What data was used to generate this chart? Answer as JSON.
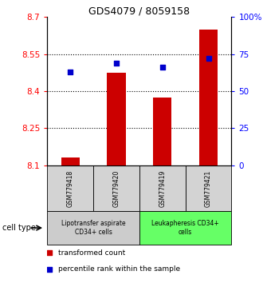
{
  "title": "GDS4079 / 8059158",
  "samples": [
    "GSM779418",
    "GSM779420",
    "GSM779419",
    "GSM779421"
  ],
  "bar_values": [
    8.13,
    8.475,
    8.375,
    8.65
  ],
  "bar_base": 8.1,
  "percentile_values": [
    63,
    69,
    66,
    72
  ],
  "ylim_left": [
    8.1,
    8.7
  ],
  "ylim_right": [
    0,
    100
  ],
  "yticks_left": [
    8.1,
    8.25,
    8.4,
    8.55,
    8.7
  ],
  "yticks_right": [
    0,
    25,
    50,
    75,
    100
  ],
  "ytick_labels_right": [
    "0",
    "25",
    "50",
    "75",
    "100%"
  ],
  "bar_color": "#cc0000",
  "dot_color": "#0000cc",
  "cell_type_groups": [
    {
      "label": "Lipotransfer aspirate\nCD34+ cells",
      "indices": [
        0,
        1
      ],
      "color": "#cccccc"
    },
    {
      "label": "Leukapheresis CD34+\ncells",
      "indices": [
        2,
        3
      ],
      "color": "#66ff66"
    }
  ],
  "legend_items": [
    {
      "color": "#cc0000",
      "label": "transformed count"
    },
    {
      "color": "#0000cc",
      "label": "percentile rank within the sample"
    }
  ],
  "cell_type_label": "cell type"
}
